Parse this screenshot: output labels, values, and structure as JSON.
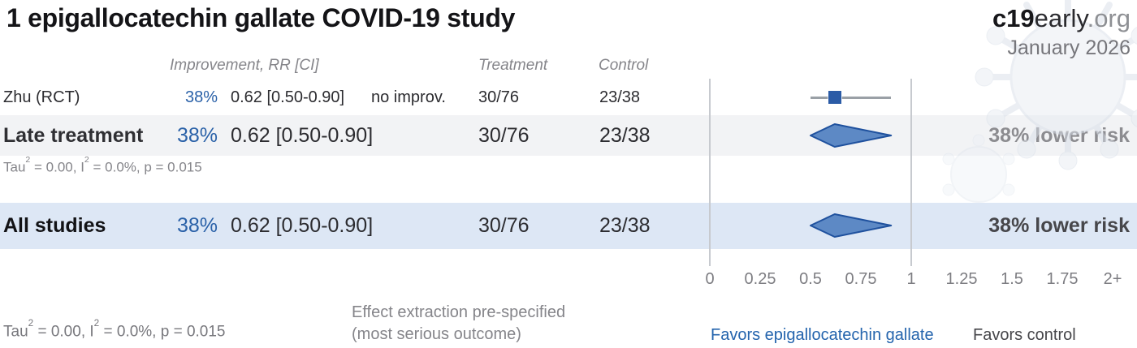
{
  "header": {
    "title": "1 epigallocatechin gallate COVID-19 study",
    "brand": {
      "c19": "c19",
      "early": "early",
      "org": ".org"
    },
    "date": "January 2026"
  },
  "columns": {
    "improvement": "Improvement, RR [CI]",
    "treatment": "Treatment",
    "control": "Control"
  },
  "rows": {
    "study": {
      "label": "Zhu (RCT)",
      "percent": "38%",
      "rr_ci": "0.62 [0.50-0.90]",
      "note": "no improv.",
      "treatment": "30/76",
      "control": "23/38"
    },
    "late": {
      "label": "Late treatment",
      "percent": "38%",
      "rr_ci": "0.62 [0.50-0.90]",
      "treatment": "30/76",
      "control": "23/38",
      "risk": "38% lower risk"
    },
    "all": {
      "label": "All studies",
      "percent": "38%",
      "rr_ci": "0.62 [0.50-0.90]",
      "treatment": "30/76",
      "control": "23/38",
      "risk": "38% lower risk"
    }
  },
  "heterogeneity": {
    "t1": "Tau",
    "s1": "2",
    "t2": " = 0.00, I",
    "s2": "2",
    "t3": " = 0.0%, p = 0.015"
  },
  "footer": {
    "effect_line1": "Effect extraction pre-specified",
    "effect_line2": "(most serious outcome)",
    "favors_treatment": "Favors epigallocatechin gallate",
    "favors_control": "Favors control"
  },
  "colors": {
    "accent_blue": "#2a61a8",
    "favors_blue": "#2464ad",
    "diamond_fill": "#5d89c5",
    "diamond_stroke": "#1f519e",
    "marker_blue": "#2b5ba6",
    "row_late_bg": "#f2f3f5",
    "row_all_bg": "#dde7f5",
    "muted_gray": "#85858a"
  },
  "chart_data": {
    "type": "forest",
    "title": "1 epigallocatechin gallate COVID-19 study",
    "axis": {
      "xlim": [
        0,
        2
      ],
      "gridlines": [
        0,
        1
      ],
      "ticks": [
        {
          "v": 0,
          "label": "0"
        },
        {
          "v": 0.25,
          "label": "0.25"
        },
        {
          "v": 0.5,
          "label": "0.5"
        },
        {
          "v": 0.75,
          "label": "0.75"
        },
        {
          "v": 1,
          "label": "1"
        },
        {
          "v": 1.25,
          "label": "1.25"
        },
        {
          "v": 1.5,
          "label": "1.5"
        },
        {
          "v": 1.75,
          "label": "1.75"
        },
        {
          "v": 2,
          "label": "2+"
        }
      ]
    },
    "studies": [
      {
        "name": "Zhu (RCT)",
        "rr": 0.62,
        "ci": [
          0.5,
          0.9
        ],
        "improvement_pct": 38,
        "note": "no improv.",
        "treatment_events": 30,
        "treatment_total": 76,
        "control_events": 23,
        "control_total": 38,
        "marker": "square"
      }
    ],
    "summaries": [
      {
        "name": "Late treatment",
        "rr": 0.62,
        "ci": [
          0.5,
          0.9
        ],
        "improvement_pct": 38,
        "risk_text": "38% lower risk",
        "tau2": 0.0,
        "i2_pct": 0.0,
        "p": 0.015
      },
      {
        "name": "All studies",
        "rr": 0.62,
        "ci": [
          0.5,
          0.9
        ],
        "improvement_pct": 38,
        "risk_text": "38% lower risk",
        "tau2": 0.0,
        "i2_pct": 0.0,
        "p": 0.015
      }
    ],
    "legend": {
      "left": "Favors epigallocatechin gallate",
      "right": "Favors control"
    }
  }
}
